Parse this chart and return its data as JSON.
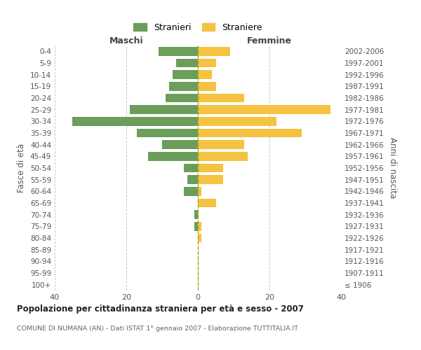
{
  "age_groups": [
    "0-4",
    "5-9",
    "10-14",
    "15-19",
    "20-24",
    "25-29",
    "30-34",
    "35-39",
    "40-44",
    "45-49",
    "50-54",
    "55-59",
    "60-64",
    "65-69",
    "70-74",
    "75-79",
    "80-84",
    "85-89",
    "90-94",
    "95-99",
    "100+"
  ],
  "birth_years": [
    "2002-2006",
    "1997-2001",
    "1992-1996",
    "1987-1991",
    "1982-1986",
    "1977-1981",
    "1972-1976",
    "1967-1971",
    "1962-1966",
    "1957-1961",
    "1952-1956",
    "1947-1951",
    "1942-1946",
    "1937-1941",
    "1932-1936",
    "1927-1931",
    "1922-1926",
    "1917-1921",
    "1912-1916",
    "1907-1911",
    "≤ 1906"
  ],
  "maschi": [
    11,
    6,
    7,
    8,
    9,
    19,
    35,
    17,
    10,
    14,
    4,
    3,
    4,
    0,
    1,
    1,
    0,
    0,
    0,
    0,
    0
  ],
  "femmine": [
    9,
    5,
    4,
    5,
    13,
    37,
    22,
    29,
    13,
    14,
    7,
    7,
    1,
    5,
    0,
    1,
    1,
    0,
    0,
    0,
    0
  ],
  "maschi_color": "#6a9e5a",
  "femmine_color": "#f5c242",
  "title": "Popolazione per cittadinanza straniera per età e sesso - 2007",
  "subtitle": "COMUNE DI NUMANA (AN) - Dati ISTAT 1° gennaio 2007 - Elaborazione TUTTITALIA.IT",
  "xlabel_left": "Maschi",
  "xlabel_right": "Femmine",
  "ylabel_left": "Fasce di età",
  "ylabel_right": "Anni di nascita",
  "legend_stranieri": "Stranieri",
  "legend_straniere": "Straniere",
  "xlim": 40,
  "background_color": "#ffffff",
  "grid_color": "#cccccc",
  "bar_height": 0.75
}
